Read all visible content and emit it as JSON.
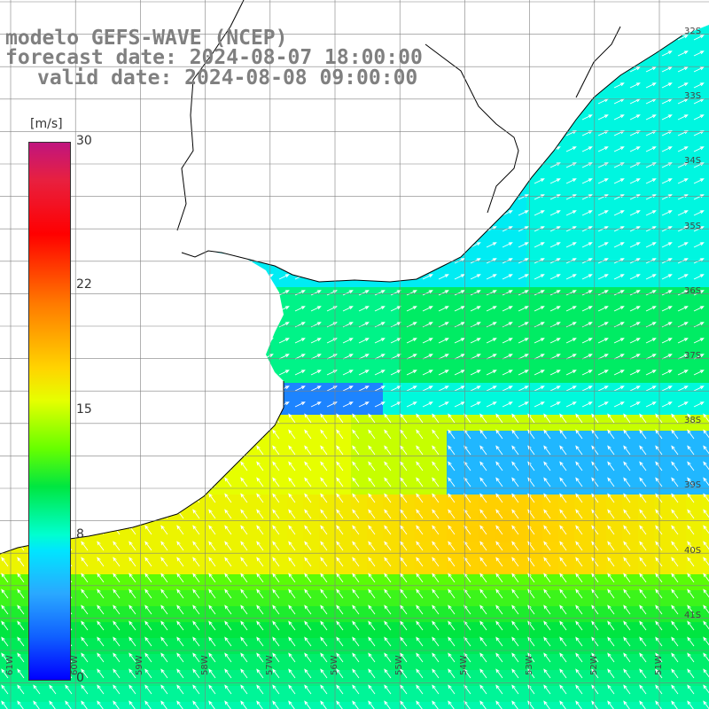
{
  "title": {
    "model": "modelo GEFS-WAVE (NCEP)",
    "forecast": "forecast date: 2024-08-07 18:00:00",
    "valid": "valid date: 2024-08-08 09:00:00"
  },
  "colorbar": {
    "unit": "[m/s]",
    "ticks": [
      {
        "label": "30",
        "value": 30
      },
      {
        "label": "22",
        "value": 22
      },
      {
        "label": "15",
        "value": 15
      },
      {
        "label": "8",
        "value": 8
      },
      {
        "label": "0",
        "value": 0
      }
    ]
  },
  "lat_labels": [
    "32S",
    "33S",
    "34S",
    "35S",
    "36S",
    "37S",
    "38S",
    "39S",
    "40S",
    "41S"
  ],
  "lon_labels": [
    "61W",
    "60W",
    "59W",
    "58W",
    "57W",
    "56W",
    "55W",
    "54W",
    "53W",
    "52W",
    "51W"
  ],
  "colors": {
    "land": "#ffffff",
    "coast": "#000000",
    "grid": "#808080",
    "arrow": "#ffffff"
  }
}
